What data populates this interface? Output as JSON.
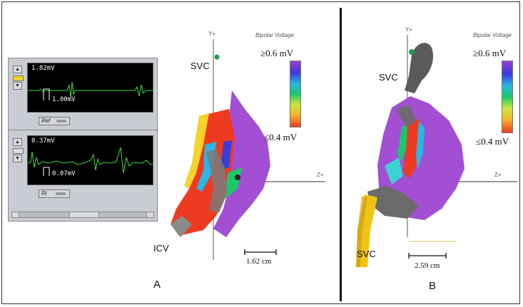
{
  "panels": {
    "a_label": "A",
    "b_label": "B"
  },
  "egm": {
    "top_channel": {
      "readout": "1.82mV",
      "calibration": "1.00mV",
      "button_label": "Ref"
    },
    "bottom_channel": {
      "readout": "0.37mV",
      "calibration": "0.07mV",
      "button_label": "Ri"
    },
    "side_buttons": [
      "▲",
      "▼"
    ],
    "signal_color": "#34e03c"
  },
  "map_a": {
    "axis_y": "Y+",
    "axis_z": "Z+",
    "legend_title": "Bipolar Voltage",
    "voltage_high": "≥0.6 mV",
    "voltage_low": "≤0.4 mV",
    "svc_label": "SVC",
    "icv_label": "ICV",
    "scale_text": "1.62 cm"
  },
  "map_b": {
    "axis_y": "Y+",
    "axis_z": "Z+",
    "legend_title": "Bipolar Voltage",
    "voltage_high": "≥0.6 mV",
    "voltage_low": "≤0.4 mV",
    "svc_top_label": "SVC",
    "svc_bottom_label": "SVC",
    "scale_text": "2.59 cm"
  },
  "colors": {
    "healthy": "#a24fd4",
    "scar": "#ef3a22",
    "vessel_gray": "#6b6b6b",
    "catheter_yellow": "#f0c417"
  }
}
